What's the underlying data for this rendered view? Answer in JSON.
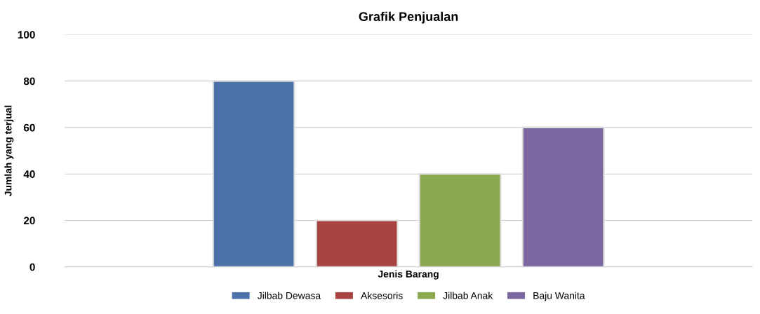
{
  "chart_data": {
    "type": "bar",
    "title": "Grafik Penjualan",
    "xlabel": "Jenis Barang",
    "ylabel": "Jumlah yang terjual",
    "categories": [
      null
    ],
    "series": [
      {
        "name": "Jilbab Dewasa",
        "color": "#4a72a8",
        "values": [
          80
        ]
      },
      {
        "name": "Aksesoris",
        "color": "#a84442",
        "values": [
          20
        ]
      },
      {
        "name": "Jilbab Anak",
        "color": "#8aa84e",
        "values": [
          40
        ]
      },
      {
        "name": "Baju Wanita",
        "color": "#7c66a0",
        "values": [
          60
        ]
      }
    ],
    "ylim": [
      0,
      100
    ],
    "yticks": [
      0,
      20,
      40,
      60,
      80,
      100
    ],
    "grid": "y",
    "legend": "bottom"
  }
}
